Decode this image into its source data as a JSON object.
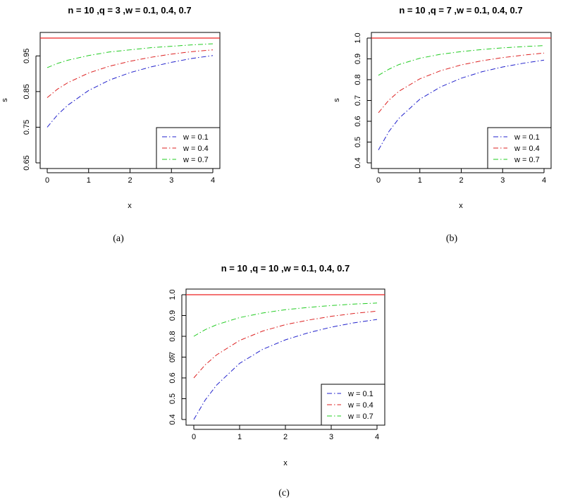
{
  "chart_data": [
    {
      "type": "line",
      "title": "n = 10 ,q = 3 ,w = 0.1, 0.4, 0.7",
      "xlabel": "x",
      "ylabel": "s",
      "caption": "(a)",
      "xlim": [
        0,
        4
      ],
      "ylim": [
        0.65,
        1.0
      ],
      "xticks": [
        0,
        1,
        2,
        3,
        4
      ],
      "xtick_labels": [
        "0",
        "1",
        "2",
        "3",
        "4"
      ],
      "yticks": [
        0.65,
        0.75,
        0.85,
        0.95
      ],
      "ytick_labels": [
        "0.65",
        "0.75",
        "0.85",
        "0.95"
      ],
      "grid": false,
      "legend_position": "bottom-right",
      "reference_line": {
        "y": 1.0,
        "color": "#ee2222"
      },
      "series": [
        {
          "name": "w = 0.1",
          "color": "#2222cc",
          "dash": "dotdash",
          "x": [
            0,
            0.25,
            0.5,
            1,
            1.5,
            2,
            2.5,
            3,
            3.5,
            4
          ],
          "y": [
            0.75,
            0.785,
            0.812,
            0.853,
            0.882,
            0.903,
            0.919,
            0.932,
            0.943,
            0.951
          ]
        },
        {
          "name": "w = 0.4",
          "color": "#dd2222",
          "dash": "dotdash",
          "x": [
            0,
            0.25,
            0.5,
            1,
            1.5,
            2,
            2.5,
            3,
            3.5,
            4
          ],
          "y": [
            0.833,
            0.857,
            0.875,
            0.902,
            0.921,
            0.935,
            0.946,
            0.955,
            0.962,
            0.967
          ]
        },
        {
          "name": "w = 0.7",
          "color": "#22cc22",
          "dash": "dotdash",
          "x": [
            0,
            0.25,
            0.5,
            1,
            1.5,
            2,
            2.5,
            3,
            3.5,
            4
          ],
          "y": [
            0.917,
            0.929,
            0.938,
            0.951,
            0.961,
            0.967,
            0.973,
            0.977,
            0.981,
            0.984
          ]
        }
      ]
    },
    {
      "type": "line",
      "title": "n = 10 ,q = 7 ,w = 0.1, 0.4, 0.7",
      "xlabel": "x",
      "ylabel": "s",
      "caption": "(b)",
      "xlim": [
        0,
        4
      ],
      "ylim": [
        0.4,
        1.0
      ],
      "xticks": [
        0,
        1,
        2,
        3,
        4
      ],
      "xtick_labels": [
        "0",
        "1",
        "2",
        "3",
        "4"
      ],
      "yticks": [
        0.4,
        0.5,
        0.6,
        0.7,
        0.8,
        0.9,
        1.0
      ],
      "ytick_labels": [
        "0.4",
        "0.5",
        "0.6",
        "0.7",
        "0.8",
        "0.9",
        "1.0"
      ],
      "grid": false,
      "legend_position": "bottom-right",
      "reference_line": {
        "y": 1.0,
        "color": "#ee2222"
      },
      "series": [
        {
          "name": "w = 0.1",
          "color": "#2222cc",
          "dash": "dotdash",
          "x": [
            0,
            0.25,
            0.5,
            1,
            1.5,
            2,
            2.5,
            3,
            3.5,
            4
          ],
          "y": [
            0.462,
            0.55,
            0.615,
            0.706,
            0.765,
            0.807,
            0.838,
            0.861,
            0.879,
            0.894
          ]
        },
        {
          "name": "w = 0.4",
          "color": "#dd2222",
          "dash": "dotdash",
          "x": [
            0,
            0.25,
            0.5,
            1,
            1.5,
            2,
            2.5,
            3,
            3.5,
            4
          ],
          "y": [
            0.641,
            0.701,
            0.745,
            0.804,
            0.843,
            0.871,
            0.891,
            0.906,
            0.918,
            0.928
          ]
        },
        {
          "name": "w = 0.7",
          "color": "#22cc22",
          "dash": "dotdash",
          "x": [
            0,
            0.25,
            0.5,
            1,
            1.5,
            2,
            2.5,
            3,
            3.5,
            4
          ],
          "y": [
            0.821,
            0.85,
            0.873,
            0.903,
            0.922,
            0.935,
            0.945,
            0.953,
            0.959,
            0.964
          ]
        }
      ]
    },
    {
      "type": "line",
      "title": "n = 10 ,q = 10 ,w = 0.1, 0.4, 0.7",
      "xlabel": "x",
      "ylabel": "s",
      "caption": "(c)",
      "xlim": [
        0,
        4
      ],
      "ylim": [
        0.4,
        1.0
      ],
      "xticks": [
        0,
        1,
        2,
        3,
        4
      ],
      "xtick_labels": [
        "0",
        "1",
        "2",
        "3",
        "4"
      ],
      "yticks": [
        0.4,
        0.5,
        0.6,
        0.7,
        0.8,
        0.9,
        1.0
      ],
      "ytick_labels": [
        "0.4",
        "0.5",
        "0.6",
        "0.7",
        "0.8",
        "0.9",
        "1.0"
      ],
      "grid": false,
      "legend_position": "bottom-right",
      "reference_line": {
        "y": 1.0,
        "color": "#ee2222"
      },
      "series": [
        {
          "name": "w = 0.1",
          "color": "#2222cc",
          "dash": "dotdash",
          "x": [
            0,
            0.25,
            0.5,
            1,
            1.5,
            2,
            2.5,
            3,
            3.5,
            4
          ],
          "y": [
            0.4,
            0.494,
            0.566,
            0.67,
            0.737,
            0.783,
            0.817,
            0.844,
            0.865,
            0.881
          ]
        },
        {
          "name": "w = 0.4",
          "color": "#dd2222",
          "dash": "dotdash",
          "x": [
            0,
            0.25,
            0.5,
            1,
            1.5,
            2,
            2.5,
            3,
            3.5,
            4
          ],
          "y": [
            0.6,
            0.663,
            0.711,
            0.78,
            0.825,
            0.856,
            0.878,
            0.896,
            0.91,
            0.921
          ]
        },
        {
          "name": "w = 0.7",
          "color": "#22cc22",
          "dash": "dotdash",
          "x": [
            0,
            0.25,
            0.5,
            1,
            1.5,
            2,
            2.5,
            3,
            3.5,
            4
          ],
          "y": [
            0.8,
            0.832,
            0.856,
            0.89,
            0.912,
            0.928,
            0.939,
            0.948,
            0.955,
            0.96
          ]
        }
      ]
    }
  ]
}
